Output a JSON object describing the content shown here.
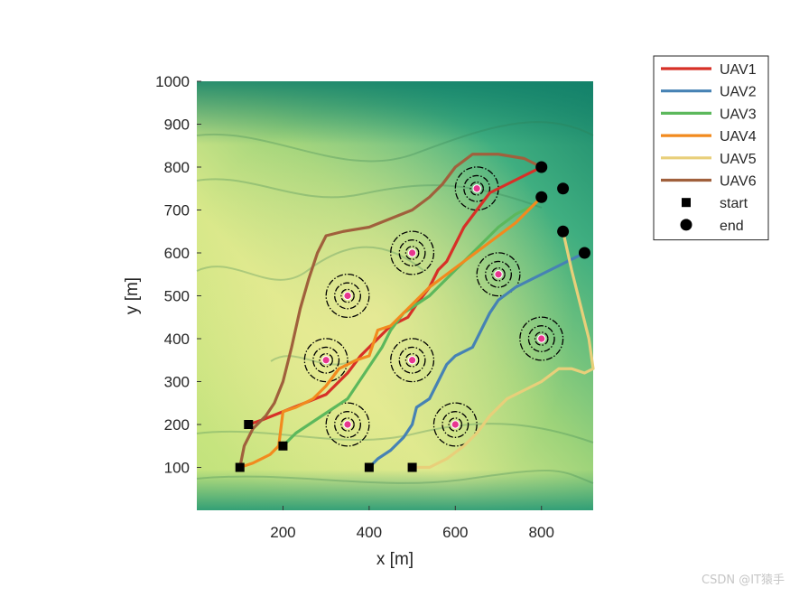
{
  "chart_data": {
    "type": "line",
    "title": "",
    "xlabel": "x [m]",
    "ylabel": "y [m]",
    "xlim": [
      0,
      920
    ],
    "ylim": [
      0,
      1000
    ],
    "xticks": [
      200,
      400,
      600,
      800
    ],
    "yticks": [
      100,
      200,
      300,
      400,
      500,
      600,
      700,
      800,
      900,
      1000
    ],
    "background": "terrain heightmap",
    "legend_position": "outside-top-right",
    "series": [
      {
        "name": "UAV1",
        "color": "#d73027",
        "x": [
          120,
          150,
          200,
          250,
          300,
          350,
          380,
          420,
          450,
          490,
          510,
          540,
          560,
          580,
          600,
          620,
          650,
          680,
          720,
          760,
          800
        ],
        "y": [
          200,
          210,
          230,
          250,
          270,
          320,
          360,
          400,
          430,
          450,
          480,
          520,
          560,
          580,
          620,
          660,
          700,
          740,
          760,
          780,
          800
        ]
      },
      {
        "name": "UAV2",
        "color": "#4682b4",
        "x": [
          400,
          420,
          450,
          480,
          500,
          510,
          540,
          560,
          580,
          600,
          640,
          660,
          680,
          700,
          740,
          780,
          820,
          860,
          900
        ],
        "y": [
          100,
          120,
          140,
          170,
          200,
          240,
          260,
          300,
          340,
          360,
          380,
          420,
          460,
          490,
          520,
          540,
          560,
          580,
          600
        ]
      },
      {
        "name": "UAV3",
        "color": "#5cb85c",
        "x": [
          200,
          230,
          260,
          290,
          320,
          350,
          370,
          390,
          410,
          430,
          450,
          480,
          510,
          540,
          570,
          600,
          630,
          660,
          700,
          740,
          780,
          800
        ],
        "y": [
          150,
          180,
          200,
          220,
          240,
          260,
          290,
          320,
          350,
          380,
          420,
          460,
          480,
          500,
          530,
          560,
          590,
          620,
          660,
          690,
          710,
          730
        ]
      },
      {
        "name": "UAV4",
        "color": "#f28a1e",
        "x": [
          100,
          130,
          170,
          190,
          200,
          230,
          270,
          300,
          330,
          370,
          400,
          420,
          450,
          480,
          510,
          540,
          580,
          620,
          660,
          700,
          740,
          780,
          800
        ],
        "y": [
          100,
          110,
          130,
          150,
          230,
          240,
          260,
          290,
          330,
          350,
          360,
          420,
          430,
          460,
          490,
          520,
          550,
          580,
          610,
          640,
          670,
          710,
          730
        ]
      },
      {
        "name": "UAV5",
        "color": "#e8cf7a",
        "x": [
          500,
          540,
          580,
          620,
          650,
          680,
          720,
          760,
          800,
          840,
          870,
          900,
          920,
          910,
          890,
          870,
          850
        ],
        "y": [
          100,
          100,
          120,
          150,
          180,
          220,
          260,
          280,
          300,
          330,
          330,
          320,
          330,
          400,
          480,
          560,
          650
        ]
      },
      {
        "name": "UAV6",
        "color": "#a0603c",
        "x": [
          100,
          110,
          130,
          160,
          180,
          200,
          220,
          240,
          260,
          280,
          300,
          340,
          400,
          450,
          500,
          540,
          570,
          600,
          640,
          700,
          760,
          800
        ],
        "y": [
          100,
          150,
          190,
          220,
          250,
          300,
          380,
          470,
          540,
          600,
          640,
          650,
          660,
          680,
          700,
          730,
          760,
          800,
          830,
          830,
          820,
          800
        ]
      }
    ],
    "start_points": [
      {
        "x": 120,
        "y": 200
      },
      {
        "x": 200,
        "y": 150
      },
      {
        "x": 100,
        "y": 100
      },
      {
        "x": 400,
        "y": 100
      },
      {
        "x": 500,
        "y": 100
      }
    ],
    "end_points": [
      {
        "x": 800,
        "y": 800
      },
      {
        "x": 800,
        "y": 730
      },
      {
        "x": 850,
        "y": 750
      },
      {
        "x": 850,
        "y": 650
      },
      {
        "x": 900,
        "y": 600
      }
    ],
    "threats": [
      {
        "x": 650,
        "y": 750
      },
      {
        "x": 500,
        "y": 600
      },
      {
        "x": 350,
        "y": 500
      },
      {
        "x": 700,
        "y": 550
      },
      {
        "x": 300,
        "y": 350
      },
      {
        "x": 500,
        "y": 350
      },
      {
        "x": 800,
        "y": 400
      },
      {
        "x": 350,
        "y": 200
      },
      {
        "x": 600,
        "y": 200
      }
    ],
    "threat_ring_radii": [
      15,
      30,
      50
    ],
    "legend": [
      {
        "label": "UAV1",
        "kind": "line",
        "color": "#d73027"
      },
      {
        "label": "UAV2",
        "kind": "line",
        "color": "#4682b4"
      },
      {
        "label": "UAV3",
        "kind": "line",
        "color": "#5cb85c"
      },
      {
        "label": "UAV4",
        "kind": "line",
        "color": "#f28a1e"
      },
      {
        "label": "UAV5",
        "kind": "line",
        "color": "#e8cf7a"
      },
      {
        "label": "UAV6",
        "kind": "line",
        "color": "#a0603c"
      },
      {
        "label": "start",
        "kind": "square",
        "color": "#000000"
      },
      {
        "label": "end",
        "kind": "circle",
        "color": "#000000"
      }
    ]
  },
  "watermark": "CSDN @IT猿手"
}
